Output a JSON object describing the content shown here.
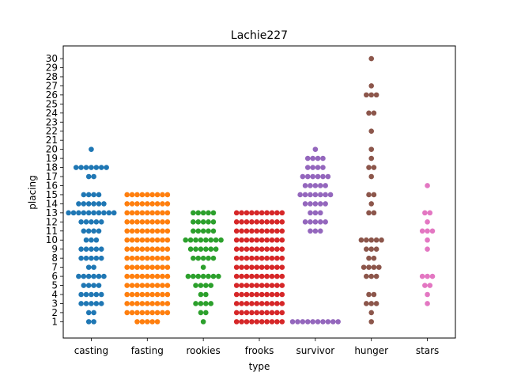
{
  "chart_data": {
    "type": "scatter",
    "style": "swarm",
    "title": "Lachie227",
    "xlabel": "type",
    "ylabel": "placing",
    "ylim": [
      -0.8,
      31.4
    ],
    "yticks": [
      1,
      2,
      3,
      4,
      5,
      6,
      7,
      8,
      9,
      10,
      11,
      12,
      13,
      14,
      15,
      16,
      17,
      18,
      19,
      20,
      21,
      22,
      23,
      24,
      25,
      26,
      27,
      28,
      29,
      30
    ],
    "grid": false,
    "categories": [
      "casting",
      "fasting",
      "rookies",
      "frooks",
      "survivor",
      "hunger",
      "stars"
    ],
    "series": [
      {
        "category": "casting",
        "color": "#1f77b4",
        "counts": {
          "1": 2,
          "2": 2,
          "3": 5,
          "4": 5,
          "5": 4,
          "6": 6,
          "7": 2,
          "8": 5,
          "9": 5,
          "10": 3,
          "11": 4,
          "12": 5,
          "13": 10,
          "14": 6,
          "15": 4,
          "17": 2,
          "18": 7,
          "20": 1
        }
      },
      {
        "category": "fasting",
        "color": "#ff7f0e",
        "counts": {
          "1": 5,
          "2": 9,
          "3": 9,
          "4": 9,
          "5": 9,
          "6": 9,
          "7": 9,
          "8": 9,
          "9": 9,
          "10": 9,
          "11": 9,
          "12": 9,
          "13": 9,
          "14": 9,
          "15": 9
        }
      },
      {
        "category": "rookies",
        "color": "#2ca02c",
        "counts": {
          "1": 1,
          "2": 2,
          "3": 4,
          "4": 2,
          "5": 4,
          "6": 7,
          "7": 1,
          "8": 5,
          "9": 6,
          "10": 8,
          "11": 5,
          "12": 5,
          "13": 5
        }
      },
      {
        "category": "frooks",
        "color": "#d62728",
        "counts": {
          "1": 10,
          "2": 10,
          "3": 10,
          "4": 10,
          "5": 10,
          "6": 10,
          "7": 10,
          "8": 10,
          "9": 10,
          "10": 10,
          "11": 10,
          "12": 10,
          "13": 10
        }
      },
      {
        "category": "survivor",
        "color": "#9467bd",
        "counts": {
          "1": 10,
          "11": 3,
          "12": 5,
          "13": 3,
          "14": 5,
          "15": 7,
          "16": 5,
          "17": 6,
          "18": 4,
          "19": 4,
          "20": 1
        }
      },
      {
        "category": "hunger",
        "color": "#8c564b",
        "counts": {
          "1": 1,
          "2": 1,
          "3": 3,
          "4": 2,
          "6": 3,
          "7": 4,
          "8": 2,
          "9": 3,
          "10": 5,
          "13": 2,
          "14": 1,
          "15": 2,
          "17": 1,
          "18": 2,
          "19": 1,
          "20": 1,
          "22": 1,
          "24": 2,
          "26": 3,
          "27": 1,
          "30": 1
        }
      },
      {
        "category": "stars",
        "color": "#e377c2",
        "counts": {
          "3": 1,
          "4": 1,
          "5": 2,
          "6": 3,
          "9": 1,
          "10": 1,
          "11": 3,
          "12": 1,
          "13": 2,
          "16": 1
        }
      }
    ]
  }
}
